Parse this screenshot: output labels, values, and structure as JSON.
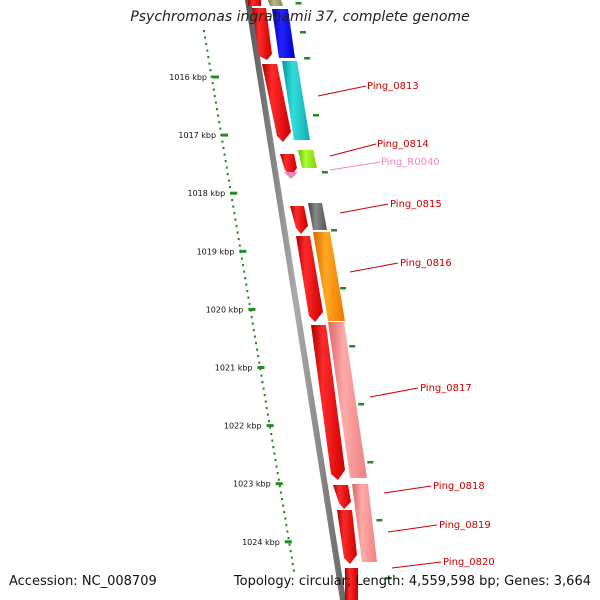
{
  "title": "Psychromonas ingrahamii 37, complete genome",
  "accession": "Accession: NC_008709",
  "topology": "Topology: circular; Length: 4,559,598 bp; Genes: 3,664",
  "scale": {
    "unit": "kbp",
    "ticks": [
      "1016 kbp",
      "1017 kbp",
      "1018 kbp",
      "1019 kbp",
      "1020 kbp",
      "1021 kbp",
      "1022 kbp",
      "1023 kbp",
      "1024 kbp"
    ]
  },
  "genes": [
    {
      "label": "Ping_0813",
      "color": "#cc0000"
    },
    {
      "label": "Ping_0814",
      "color": "#cc0000"
    },
    {
      "label": "Ping_R0040",
      "color": "#ee88bb"
    },
    {
      "label": "Ping_0815",
      "color": "#cc0000"
    },
    {
      "label": "Ping_0816",
      "color": "#cc0000"
    },
    {
      "label": "Ping_0817",
      "color": "#cc0000"
    },
    {
      "label": "Ping_0818",
      "color": "#cc0000"
    },
    {
      "label": "Ping_0819",
      "color": "#cc0000"
    },
    {
      "label": "Ping_0820",
      "color": "#cc0000"
    }
  ],
  "colors": {
    "cds": "#ff0000",
    "backbone": "#808080",
    "gc_dots": "#228b22",
    "cog_blue": "#0000ff",
    "cog_cyan": "#22cccc",
    "cog_green": "#99ee22",
    "cog_gray": "#666666",
    "cog_orange": "#ff8800",
    "cog_pink": "#f08080",
    "cog_olive": "#999966"
  }
}
